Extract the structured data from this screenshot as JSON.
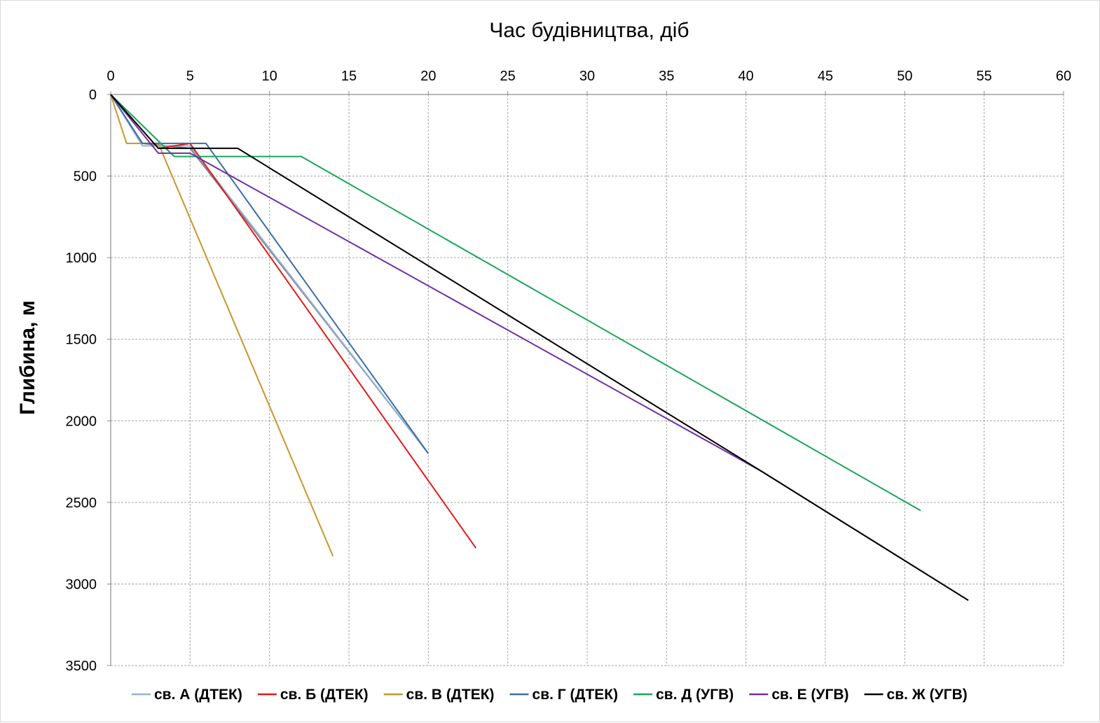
{
  "chart_data": {
    "type": "line",
    "title": "",
    "xlabel": "Час будівництва, діб",
    "ylabel": "Глибина, м",
    "xlim": [
      0,
      60
    ],
    "ylim": [
      0,
      3500
    ],
    "y_inverted": true,
    "x_axis_position": "top",
    "x_ticks": [
      "0",
      "5",
      "10",
      "15",
      "20",
      "25",
      "30",
      "35",
      "40",
      "45",
      "50",
      "55",
      "60"
    ],
    "y_ticks": [
      "0",
      "500",
      "1000",
      "1500",
      "2000",
      "2500",
      "3000",
      "3500"
    ],
    "grid": true,
    "legend_position": "bottom",
    "series": [
      {
        "name": "св. А (ДТЕК)",
        "color": "#95b3d7",
        "x": [
          0,
          2,
          5,
          20
        ],
        "y": [
          0,
          315,
          315,
          2200
        ]
      },
      {
        "name": "св. Б (ДТЕК)",
        "color": "#e31a1c",
        "x": [
          0,
          3,
          5,
          23
        ],
        "y": [
          0,
          330,
          300,
          2780
        ]
      },
      {
        "name": "св. В (ДТЕК)",
        "color": "#c8962a",
        "x": [
          0,
          1,
          3,
          14
        ],
        "y": [
          0,
          300,
          300,
          2830
        ]
      },
      {
        "name": "св. Г (ДТЕК)",
        "color": "#3a6ea5",
        "x": [
          0,
          2,
          6,
          20
        ],
        "y": [
          0,
          300,
          300,
          2200
        ]
      },
      {
        "name": "св. Д (УГВ)",
        "color": "#1aa65a",
        "x": [
          0,
          4,
          12,
          51
        ],
        "y": [
          0,
          380,
          380,
          2550
        ]
      },
      {
        "name": "св. Е (УГВ)",
        "color": "#7030a0",
        "x": [
          0,
          3,
          5,
          41,
          54
        ],
        "y": [
          0,
          360,
          360,
          2310,
          3100
        ]
      },
      {
        "name": "св. Ж (УГВ)",
        "color": "#000000",
        "x": [
          0,
          3,
          8,
          41,
          54
        ],
        "y": [
          0,
          330,
          330,
          2310,
          3100
        ]
      }
    ],
    "extra_lines": [
      {
        "color": "#808080",
        "x": [
          0,
          2,
          5,
          20
        ],
        "y": [
          0,
          300,
          330,
          2200
        ]
      }
    ]
  }
}
